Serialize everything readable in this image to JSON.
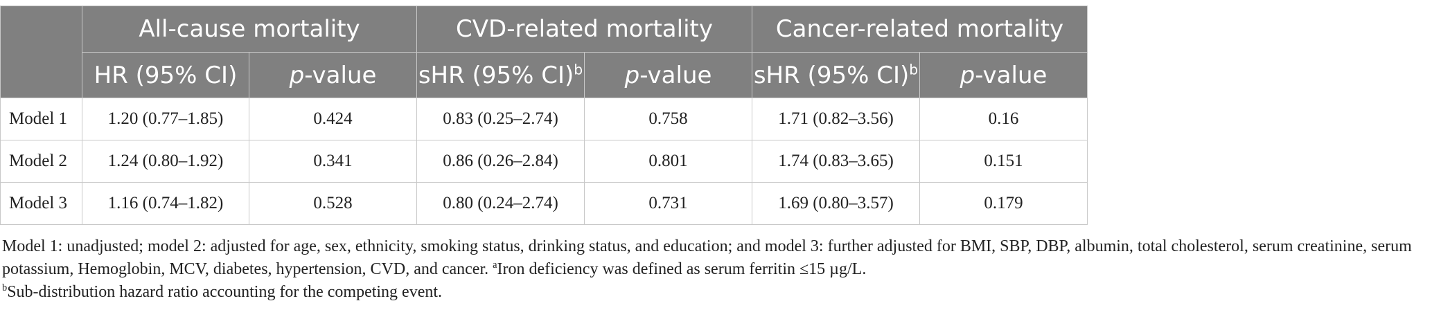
{
  "table": {
    "group_headers": [
      "All-cause mortality",
      "CVD-related mortality",
      "Cancer-related mortality"
    ],
    "sub_headers": [
      {
        "text": "HR (95% CI)",
        "sup": ""
      },
      {
        "italic": "p",
        "text": "-value"
      },
      {
        "text": "sHR (95% CI)",
        "sup": "b"
      },
      {
        "italic": "p",
        "text": "-value"
      },
      {
        "text": "sHR (95% CI)",
        "sup": "b"
      },
      {
        "italic": "p",
        "text": "-value"
      }
    ],
    "rows": [
      {
        "model": "Model 1",
        "values": [
          "1.20 (0.77–1.85)",
          "0.424",
          "0.83 (0.25–2.74)",
          "0.758",
          "1.71 (0.82–3.56)",
          "0.16"
        ]
      },
      {
        "model": "Model 2",
        "values": [
          "1.24 (0.80–1.92)",
          "0.341",
          "0.86 (0.26–2.84)",
          "0.801",
          "1.74 (0.83–3.65)",
          "0.151"
        ]
      },
      {
        "model": "Model 3",
        "values": [
          "1.16 (0.74–1.82)",
          "0.528",
          "0.80 (0.24–2.74)",
          "0.731",
          "1.69 (0.80–3.57)",
          "0.179"
        ]
      }
    ]
  },
  "footnotes": {
    "main": "Model 1: unadjusted; model 2: adjusted for age, sex, ethnicity, smoking status, drinking status, and education; and model 3: further adjusted for BMI, SBP, DBP, albumin, total cholesterol, serum creatinine, serum potassium, Hemoglobin, MCV, diabetes, hypertension, CVD, and cancer.",
    "a_marker": "a",
    "a_text": "Iron deficiency was defined as serum ferritin ≤15 µg/L.",
    "b_marker": "b",
    "b_text": "Sub-distribution hazard ratio accounting for the competing event."
  }
}
